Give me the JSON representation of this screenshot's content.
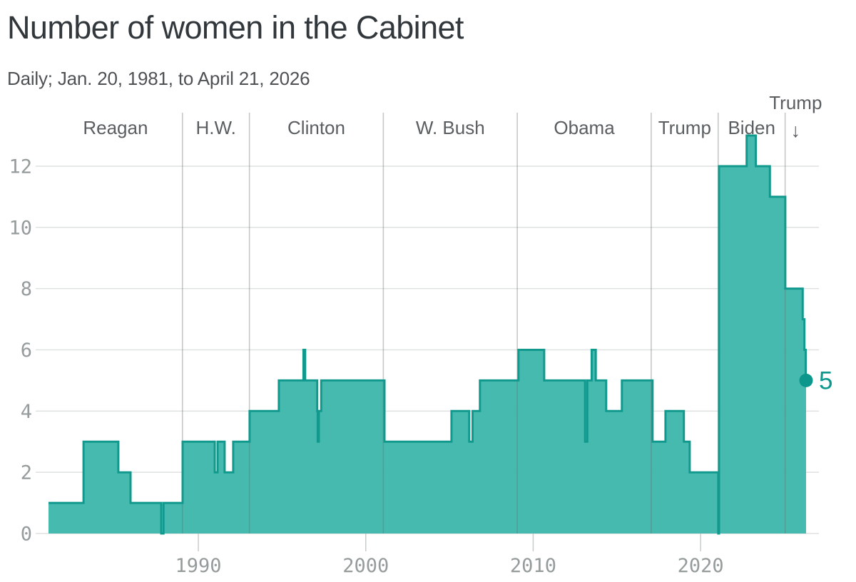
{
  "header": {
    "title": "Number of women in the Cabinet",
    "subtitle": "Daily; Jan. 20, 1981, to April 21, 2026"
  },
  "chart_data": {
    "type": "area",
    "step": true,
    "title": "Number of women in the Cabinet",
    "subtitle": "Daily; Jan. 20, 1981, to April 21, 2026",
    "xlabel": "",
    "ylabel": "",
    "x_domain": [
      1981.05,
      2026.3
    ],
    "ylim": [
      0,
      13.4
    ],
    "grid": "horizontal",
    "legend": "none",
    "x_ticks": [
      1990,
      2000,
      2010,
      2020
    ],
    "y_ticks": [
      0,
      2,
      4,
      6,
      8,
      10,
      12
    ],
    "eras": [
      {
        "label": "Reagan",
        "start": 1981.05,
        "arrow_down": false
      },
      {
        "label": "H.W.",
        "start": 1989.05,
        "arrow_down": false
      },
      {
        "label": "Clinton",
        "start": 1993.05,
        "arrow_down": false
      },
      {
        "label": "W. Bush",
        "start": 2001.05,
        "arrow_down": false
      },
      {
        "label": "Obama",
        "start": 2009.05,
        "arrow_down": false
      },
      {
        "label": "Trump",
        "start": 2017.05,
        "arrow_down": false
      },
      {
        "label": "Biden",
        "start": 2021.05,
        "arrow_down": false
      },
      {
        "label": "Trump",
        "start": 2025.05,
        "arrow_down": true
      }
    ],
    "steps": [
      [
        1981.05,
        1
      ],
      [
        1983.14,
        3
      ],
      [
        1985.22,
        2
      ],
      [
        1985.95,
        1
      ],
      [
        1987.78,
        0
      ],
      [
        1987.92,
        1
      ],
      [
        1989.06,
        3
      ],
      [
        1990.98,
        2
      ],
      [
        1991.15,
        3
      ],
      [
        1991.57,
        2
      ],
      [
        1992.08,
        3
      ],
      [
        1993.06,
        4
      ],
      [
        1994.81,
        5
      ],
      [
        1996.28,
        6
      ],
      [
        1996.38,
        5
      ],
      [
        1997.1,
        4
      ],
      [
        1997.13,
        3
      ],
      [
        1997.2,
        4
      ],
      [
        1997.34,
        5
      ],
      [
        2001.12,
        3
      ],
      [
        2005.12,
        4
      ],
      [
        2006.18,
        3
      ],
      [
        2006.38,
        4
      ],
      [
        2006.82,
        5
      ],
      [
        2009.12,
        6
      ],
      [
        2010.66,
        5
      ],
      [
        2013.1,
        3
      ],
      [
        2013.23,
        5
      ],
      [
        2013.49,
        6
      ],
      [
        2013.74,
        5
      ],
      [
        2014.36,
        4
      ],
      [
        2015.3,
        5
      ],
      [
        2017.13,
        3
      ],
      [
        2017.9,
        4
      ],
      [
        2019.0,
        3
      ],
      [
        2019.35,
        2
      ],
      [
        2021.055,
        0
      ],
      [
        2021.1,
        12
      ],
      [
        2022.75,
        13
      ],
      [
        2023.3,
        12
      ],
      [
        2024.14,
        11
      ],
      [
        2025.06,
        8
      ],
      [
        2026.1,
        7
      ],
      [
        2026.2,
        6
      ],
      [
        2026.28,
        5
      ]
    ],
    "series_end": 2026.3,
    "end_point": {
      "x": 2026.3,
      "value": 5,
      "label": "5"
    }
  },
  "colors": {
    "area_fill": "#3eb7ac",
    "line_stroke": "#12998e",
    "accent": "#0c968c",
    "gridline": "#dfe1e1",
    "tick_mark": "#c9cccc",
    "era_divider_rgba": "rgba(105,110,110,0.38)",
    "tick_text": "#969b9b",
    "era_text": "#5a5e61",
    "title_text": "#31373b",
    "subtitle_text": "#4f5254"
  }
}
